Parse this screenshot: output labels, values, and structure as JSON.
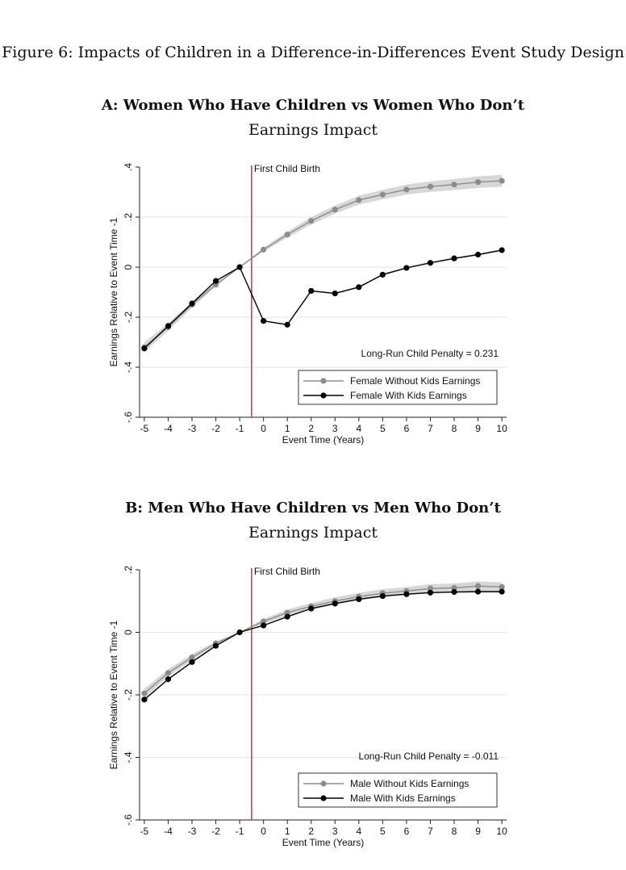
{
  "figure": {
    "title": "Figure 6: Impacts of Children in a Difference-in-Differences Event Study Design"
  },
  "panels": [
    {
      "title": "A: Women Who Have Children vs Women Who Don’t",
      "subtitle": "Earnings Impact"
    },
    {
      "title": "B: Men Who Have Children vs Men Who Don’t",
      "subtitle": "Earnings Impact"
    }
  ],
  "colors": {
    "control_series": "#8c8c8c",
    "treated_series": "#000000",
    "confidence_band": "#d3d3d3",
    "event_line": "#c0284a",
    "gridline": "#e6e6e6"
  },
  "chart_data": [
    {
      "type": "line",
      "xlabel": "Event Time (Years)",
      "ylabel": "Earnings Relative to Event Time -1",
      "x": [
        -5,
        -4,
        -3,
        -2,
        -1,
        0,
        1,
        2,
        3,
        4,
        5,
        6,
        7,
        8,
        9,
        10
      ],
      "xticks": [
        "-5",
        "-4",
        "-3",
        "-2",
        "-1",
        "0",
        "1",
        "2",
        "3",
        "4",
        "5",
        "6",
        "7",
        "8",
        "9",
        "10"
      ],
      "xlim": [
        -5.2,
        10.2
      ],
      "ylim": [
        -0.6,
        0.4
      ],
      "yticks": [
        -0.6,
        -0.4,
        -0.2,
        0,
        0.2,
        0.4
      ],
      "ytick_labels": [
        "-.6",
        "-.4",
        "-.2",
        "0",
        ".2",
        ".4"
      ],
      "grid": true,
      "legend_position": "bottom-right",
      "event_line": {
        "x": -0.5,
        "label": "First Child Birth"
      },
      "annotation": "Long-Run Child Penalty = 0.231",
      "series": [
        {
          "name": "Female Without Kids Earnings",
          "values": [
            -0.32,
            -0.24,
            -0.15,
            -0.07,
            0.0,
            0.07,
            0.13,
            0.185,
            0.23,
            0.268,
            0.29,
            0.31,
            0.322,
            0.33,
            0.34,
            0.345
          ],
          "ci_halfwidth": [
            0.02,
            0.015,
            0.012,
            0.008,
            0.0,
            0.008,
            0.012,
            0.015,
            0.016,
            0.018,
            0.019,
            0.02,
            0.021,
            0.022,
            0.023,
            0.024
          ]
        },
        {
          "name": "Female With Kids Earnings",
          "values": [
            -0.325,
            -0.235,
            -0.145,
            -0.055,
            0.0,
            -0.215,
            -0.23,
            -0.095,
            -0.105,
            -0.08,
            -0.03,
            -0.003,
            0.017,
            0.035,
            0.05,
            0.068
          ],
          "ci_halfwidth": [
            0.005,
            0.004,
            0.004,
            0.003,
            0.0,
            0.004,
            0.004,
            0.004,
            0.004,
            0.004,
            0.004,
            0.004,
            0.004,
            0.004,
            0.004,
            0.004
          ]
        }
      ]
    },
    {
      "type": "line",
      "xlabel": "Event Time (Years)",
      "ylabel": "Earnings Relative to Event Time -1",
      "x": [
        -5,
        -4,
        -3,
        -2,
        -1,
        0,
        1,
        2,
        3,
        4,
        5,
        6,
        7,
        8,
        9,
        10
      ],
      "xticks": [
        "-5",
        "-4",
        "-3",
        "-2",
        "-1",
        "0",
        "1",
        "2",
        "3",
        "4",
        "5",
        "6",
        "7",
        "8",
        "9",
        "10"
      ],
      "xlim": [
        -5.2,
        10.2
      ],
      "ylim": [
        -0.6,
        0.2
      ],
      "yticks": [
        -0.6,
        -0.4,
        -0.2,
        0,
        0.2
      ],
      "ytick_labels": [
        "-.6",
        "-.4",
        "-.2",
        "0",
        ".2"
      ],
      "grid": true,
      "legend_position": "bottom-right",
      "event_line": {
        "x": -0.5,
        "label": "First Child Birth"
      },
      "annotation": "Long-Run Child Penalty = -0.011",
      "series": [
        {
          "name": "Male Without Kids Earnings",
          "values": [
            -0.195,
            -0.13,
            -0.08,
            -0.035,
            0.0,
            0.035,
            0.063,
            0.083,
            0.1,
            0.114,
            0.125,
            0.132,
            0.14,
            0.142,
            0.148,
            0.145
          ],
          "ci_halfwidth": [
            0.015,
            0.012,
            0.01,
            0.006,
            0.0,
            0.008,
            0.01,
            0.011,
            0.012,
            0.012,
            0.013,
            0.013,
            0.014,
            0.014,
            0.015,
            0.015
          ]
        },
        {
          "name": "Male With Kids Earnings",
          "values": [
            -0.215,
            -0.15,
            -0.095,
            -0.043,
            0.0,
            0.022,
            0.05,
            0.076,
            0.092,
            0.106,
            0.116,
            0.122,
            0.127,
            0.129,
            0.13,
            0.13
          ],
          "ci_halfwidth": [
            0.004,
            0.003,
            0.003,
            0.002,
            0.0,
            0.002,
            0.003,
            0.003,
            0.003,
            0.003,
            0.003,
            0.003,
            0.003,
            0.003,
            0.003,
            0.003
          ]
        }
      ]
    }
  ]
}
